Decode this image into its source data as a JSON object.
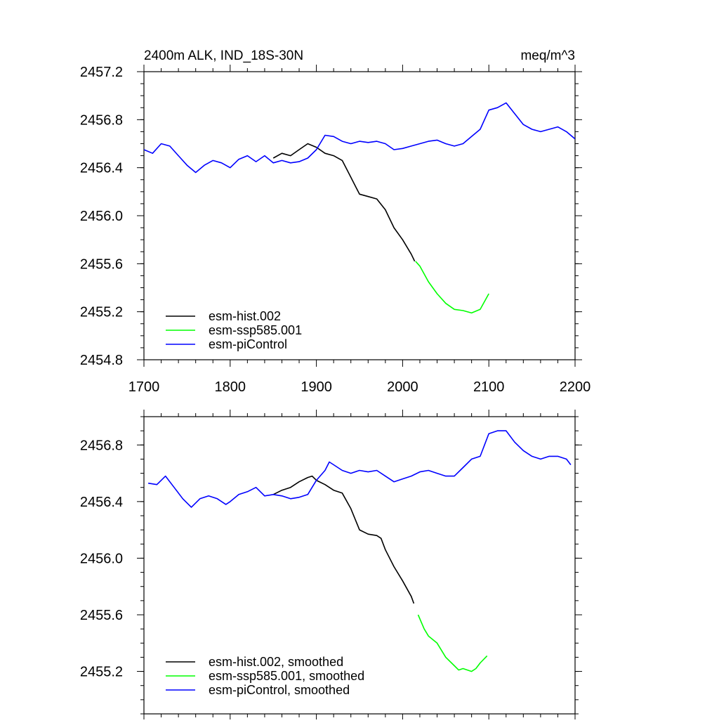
{
  "chart_data": [
    {
      "type": "line",
      "title_left": "2400m ALK, IND_18S-30N",
      "title_right": "meq/m^3",
      "xlabel": "",
      "ylabel": "",
      "xlim": [
        1700,
        2200
      ],
      "ylim": [
        2454.8,
        2457.2
      ],
      "x_ticks": [
        1700,
        1800,
        1900,
        2000,
        2100,
        2200
      ],
      "x_tick_labels": [
        "1700",
        "1800",
        "1900",
        "2000",
        "2100",
        "2200"
      ],
      "y_ticks": [
        2454.8,
        2455.2,
        2455.6,
        2456.0,
        2456.4,
        2456.8,
        2457.2
      ],
      "y_tick_labels": [
        "2454.8",
        "2455.2",
        "2455.6",
        "2456.0",
        "2456.4",
        "2456.8",
        "2457.2"
      ],
      "grid": false,
      "legend_position": "bottom-left",
      "series": [
        {
          "name": "esm-hist.002",
          "color": "#000000",
          "x": [
            1850,
            1860,
            1870,
            1880,
            1890,
            1900,
            1910,
            1920,
            1930,
            1940,
            1950,
            1960,
            1970,
            1980,
            1990,
            2000,
            2010,
            2014
          ],
          "y": [
            2456.48,
            2456.52,
            2456.5,
            2456.55,
            2456.6,
            2456.57,
            2456.52,
            2456.5,
            2456.46,
            2456.32,
            2456.18,
            2456.16,
            2456.14,
            2456.05,
            2455.9,
            2455.8,
            2455.68,
            2455.62
          ]
        },
        {
          "name": "esm-ssp585.001",
          "color": "#00ff00",
          "x": [
            2015,
            2020,
            2030,
            2040,
            2050,
            2060,
            2070,
            2080,
            2090,
            2100
          ],
          "y": [
            2455.62,
            2455.58,
            2455.45,
            2455.35,
            2455.27,
            2455.22,
            2455.21,
            2455.19,
            2455.22,
            2455.35
          ]
        },
        {
          "name": "esm-piControl",
          "color": "#0000ff",
          "x": [
            1700,
            1710,
            1720,
            1730,
            1740,
            1750,
            1760,
            1770,
            1780,
            1790,
            1800,
            1810,
            1820,
            1830,
            1840,
            1850,
            1860,
            1870,
            1880,
            1890,
            1900,
            1910,
            1920,
            1930,
            1940,
            1950,
            1960,
            1970,
            1980,
            1990,
            2000,
            2010,
            2020,
            2030,
            2040,
            2050,
            2060,
            2070,
            2080,
            2090,
            2100,
            2110,
            2120,
            2130,
            2140,
            2150,
            2160,
            2170,
            2180,
            2190,
            2200
          ],
          "y": [
            2456.55,
            2456.52,
            2456.6,
            2456.58,
            2456.5,
            2456.42,
            2456.36,
            2456.42,
            2456.46,
            2456.44,
            2456.4,
            2456.47,
            2456.5,
            2456.45,
            2456.5,
            2456.44,
            2456.46,
            2456.44,
            2456.45,
            2456.48,
            2456.55,
            2456.67,
            2456.66,
            2456.62,
            2456.6,
            2456.62,
            2456.61,
            2456.62,
            2456.6,
            2456.55,
            2456.56,
            2456.58,
            2456.6,
            2456.62,
            2456.63,
            2456.6,
            2456.58,
            2456.6,
            2456.66,
            2456.72,
            2456.88,
            2456.9,
            2456.94,
            2456.85,
            2456.76,
            2456.72,
            2456.7,
            2456.72,
            2456.74,
            2456.7,
            2456.64
          ]
        }
      ]
    },
    {
      "type": "line",
      "title_left": "",
      "title_right": "",
      "xlabel": "",
      "ylabel": "",
      "xlim": [
        1700,
        2200
      ],
      "ylim": [
        2454.9,
        2457.0
      ],
      "x_ticks": [
        1700,
        1800,
        1900,
        2000,
        2100,
        2200
      ],
      "y_ticks": [
        2455.2,
        2455.6,
        2456.0,
        2456.4,
        2456.8
      ],
      "y_tick_labels": [
        "2455.2",
        "2455.6",
        "2456.0",
        "2456.4",
        "2456.8"
      ],
      "grid": false,
      "legend_position": "bottom-left",
      "series": [
        {
          "name": "esm-hist.002, smoothed",
          "color": "#000000",
          "x": [
            1850,
            1860,
            1870,
            1880,
            1890,
            1895,
            1900,
            1910,
            1920,
            1930,
            1940,
            1950,
            1960,
            1970,
            1975,
            1980,
            1990,
            2000,
            2010,
            2013
          ],
          "y": [
            2456.45,
            2456.48,
            2456.5,
            2456.54,
            2456.57,
            2456.58,
            2456.55,
            2456.52,
            2456.48,
            2456.46,
            2456.35,
            2456.2,
            2456.17,
            2456.16,
            2456.14,
            2456.06,
            2455.94,
            2455.84,
            2455.73,
            2455.68
          ]
        },
        {
          "name": "esm-ssp585.001, smoothed",
          "color": "#00ff00",
          "x": [
            2018,
            2025,
            2030,
            2040,
            2050,
            2060,
            2065,
            2070,
            2080,
            2085,
            2090,
            2098
          ],
          "y": [
            2455.6,
            2455.5,
            2455.45,
            2455.4,
            2455.3,
            2455.24,
            2455.21,
            2455.22,
            2455.2,
            2455.22,
            2455.26,
            2455.31
          ]
        },
        {
          "name": "esm-piControl, smoothed",
          "color": "#0000ff",
          "x": [
            1705,
            1715,
            1725,
            1735,
            1745,
            1755,
            1765,
            1775,
            1785,
            1795,
            1800,
            1810,
            1820,
            1830,
            1840,
            1850,
            1860,
            1870,
            1880,
            1890,
            1900,
            1910,
            1915,
            1920,
            1930,
            1940,
            1950,
            1960,
            1970,
            1980,
            1990,
            2000,
            2010,
            2020,
            2030,
            2040,
            2050,
            2060,
            2070,
            2080,
            2090,
            2100,
            2110,
            2120,
            2130,
            2140,
            2150,
            2160,
            2170,
            2180,
            2190,
            2195
          ],
          "y": [
            2456.53,
            2456.52,
            2456.58,
            2456.5,
            2456.42,
            2456.36,
            2456.42,
            2456.44,
            2456.42,
            2456.38,
            2456.4,
            2456.45,
            2456.47,
            2456.5,
            2456.44,
            2456.45,
            2456.44,
            2456.42,
            2456.43,
            2456.45,
            2456.55,
            2456.62,
            2456.68,
            2456.66,
            2456.62,
            2456.6,
            2456.62,
            2456.61,
            2456.62,
            2456.58,
            2456.54,
            2456.56,
            2456.58,
            2456.61,
            2456.62,
            2456.6,
            2456.58,
            2456.58,
            2456.64,
            2456.7,
            2456.72,
            2456.88,
            2456.9,
            2456.9,
            2456.82,
            2456.76,
            2456.72,
            2456.7,
            2456.72,
            2456.72,
            2456.7,
            2456.66
          ]
        }
      ]
    }
  ]
}
